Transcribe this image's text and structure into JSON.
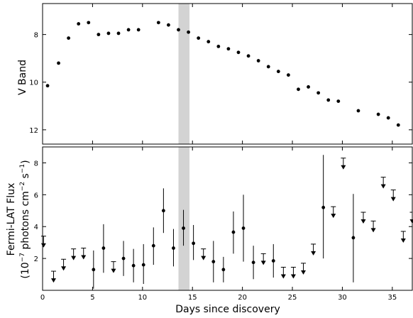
{
  "chart_data": [
    {
      "type": "scatter",
      "ylabel": "V Band",
      "xlabel": "",
      "xlim": [
        0,
        37
      ],
      "ylim": [
        12.6,
        6.7
      ],
      "y_inverted": true,
      "y_ticks": [
        8,
        10,
        12
      ],
      "shaded_band": [
        13.6,
        14.7
      ],
      "points": [
        {
          "x": 0.5,
          "y": 10.15
        },
        {
          "x": 1.6,
          "y": 9.2
        },
        {
          "x": 2.6,
          "y": 8.15
        },
        {
          "x": 3.6,
          "y": 7.55
        },
        {
          "x": 4.6,
          "y": 7.5
        },
        {
          "x": 5.6,
          "y": 8.0
        },
        {
          "x": 6.6,
          "y": 7.95
        },
        {
          "x": 7.6,
          "y": 7.95
        },
        {
          "x": 8.6,
          "y": 7.8
        },
        {
          "x": 9.6,
          "y": 7.8
        },
        {
          "x": 11.6,
          "y": 7.5
        },
        {
          "x": 12.6,
          "y": 7.6
        },
        {
          "x": 13.6,
          "y": 7.8
        },
        {
          "x": 14.6,
          "y": 7.9
        },
        {
          "x": 15.6,
          "y": 8.15
        },
        {
          "x": 16.6,
          "y": 8.3
        },
        {
          "x": 17.6,
          "y": 8.5
        },
        {
          "x": 18.6,
          "y": 8.6
        },
        {
          "x": 19.6,
          "y": 8.75
        },
        {
          "x": 20.6,
          "y": 8.9
        },
        {
          "x": 21.6,
          "y": 9.1
        },
        {
          "x": 22.6,
          "y": 9.35
        },
        {
          "x": 23.6,
          "y": 9.55
        },
        {
          "x": 24.6,
          "y": 9.7
        },
        {
          "x": 25.6,
          "y": 10.3
        },
        {
          "x": 26.6,
          "y": 10.2
        },
        {
          "x": 27.6,
          "y": 10.45
        },
        {
          "x": 28.6,
          "y": 10.75
        },
        {
          "x": 29.6,
          "y": 10.8
        },
        {
          "x": 31.6,
          "y": 11.2
        },
        {
          "x": 33.6,
          "y": 11.35
        },
        {
          "x": 34.6,
          "y": 11.5
        },
        {
          "x": 35.6,
          "y": 11.8
        }
      ]
    },
    {
      "type": "scatter",
      "ylabel": "Fermi-LAT Flux",
      "ylabel_line2": "(10",
      "ylabel_exp1": "−7",
      "ylabel_mid": " photons cm",
      "ylabel_exp2": "−2",
      "ylabel_mid2": " s",
      "ylabel_exp3": "−1",
      "ylabel_end": ")",
      "xlabel": "Days since discovery",
      "xlim": [
        0,
        37
      ],
      "ylim": [
        0,
        9
      ],
      "x_ticks": [
        0,
        5,
        10,
        15,
        20,
        25,
        30,
        35
      ],
      "y_ticks": [
        2,
        4,
        6,
        8
      ],
      "shaded_band": [
        13.6,
        14.7
      ],
      "detections": [
        {
          "x": 5.1,
          "y": 1.3,
          "lo": 0.1,
          "hi": 2.5
        },
        {
          "x": 6.1,
          "y": 2.65,
          "lo": 1.1,
          "hi": 4.15
        },
        {
          "x": 8.1,
          "y": 2.0,
          "lo": 0.9,
          "hi": 3.1
        },
        {
          "x": 9.1,
          "y": 1.55,
          "lo": 0.5,
          "hi": 2.6
        },
        {
          "x": 10.1,
          "y": 1.6,
          "lo": 0.4,
          "hi": 2.9
        },
        {
          "x": 11.1,
          "y": 2.8,
          "lo": 1.6,
          "hi": 3.95
        },
        {
          "x": 12.1,
          "y": 5.0,
          "lo": 3.6,
          "hi": 6.4
        },
        {
          "x": 13.1,
          "y": 2.65,
          "lo": 1.5,
          "hi": 3.85
        },
        {
          "x": 14.1,
          "y": 3.9,
          "lo": 2.8,
          "hi": 5.05
        },
        {
          "x": 15.1,
          "y": 2.95,
          "lo": 1.9,
          "hi": 4.1
        },
        {
          "x": 17.1,
          "y": 1.8,
          "lo": 0.5,
          "hi": 3.1
        },
        {
          "x": 18.1,
          "y": 1.3,
          "lo": 0.5,
          "hi": 2.1
        },
        {
          "x": 19.1,
          "y": 3.65,
          "lo": 2.3,
          "hi": 4.95
        },
        {
          "x": 20.1,
          "y": 3.9,
          "lo": 1.8,
          "hi": 6.0
        },
        {
          "x": 21.1,
          "y": 1.75,
          "lo": 0.7,
          "hi": 2.8
        },
        {
          "x": 23.1,
          "y": 1.85,
          "lo": 0.8,
          "hi": 2.9
        },
        {
          "x": 28.1,
          "y": 5.2,
          "lo": 2.0,
          "hi": 8.5
        },
        {
          "x": 31.1,
          "y": 3.3,
          "lo": 0.5,
          "hi": 6.05
        }
      ],
      "upper_limits": [
        {
          "x": 0.1,
          "y": 3.4
        },
        {
          "x": 1.1,
          "y": 1.2
        },
        {
          "x": 2.1,
          "y": 1.95
        },
        {
          "x": 3.1,
          "y": 2.6
        },
        {
          "x": 4.1,
          "y": 2.65
        },
        {
          "x": 7.1,
          "y": 1.8
        },
        {
          "x": 16.1,
          "y": 2.6
        },
        {
          "x": 22.1,
          "y": 2.3
        },
        {
          "x": 24.1,
          "y": 1.45
        },
        {
          "x": 25.1,
          "y": 1.45
        },
        {
          "x": 26.1,
          "y": 1.7
        },
        {
          "x": 27.1,
          "y": 2.9
        },
        {
          "x": 29.1,
          "y": 5.25
        },
        {
          "x": 30.1,
          "y": 8.3
        },
        {
          "x": 32.1,
          "y": 4.9
        },
        {
          "x": 33.1,
          "y": 4.35
        },
        {
          "x": 34.1,
          "y": 7.1
        },
        {
          "x": 35.1,
          "y": 6.3
        },
        {
          "x": 36.1,
          "y": 3.7
        },
        {
          "x": 37.0,
          "y": 4.9
        }
      ]
    }
  ]
}
